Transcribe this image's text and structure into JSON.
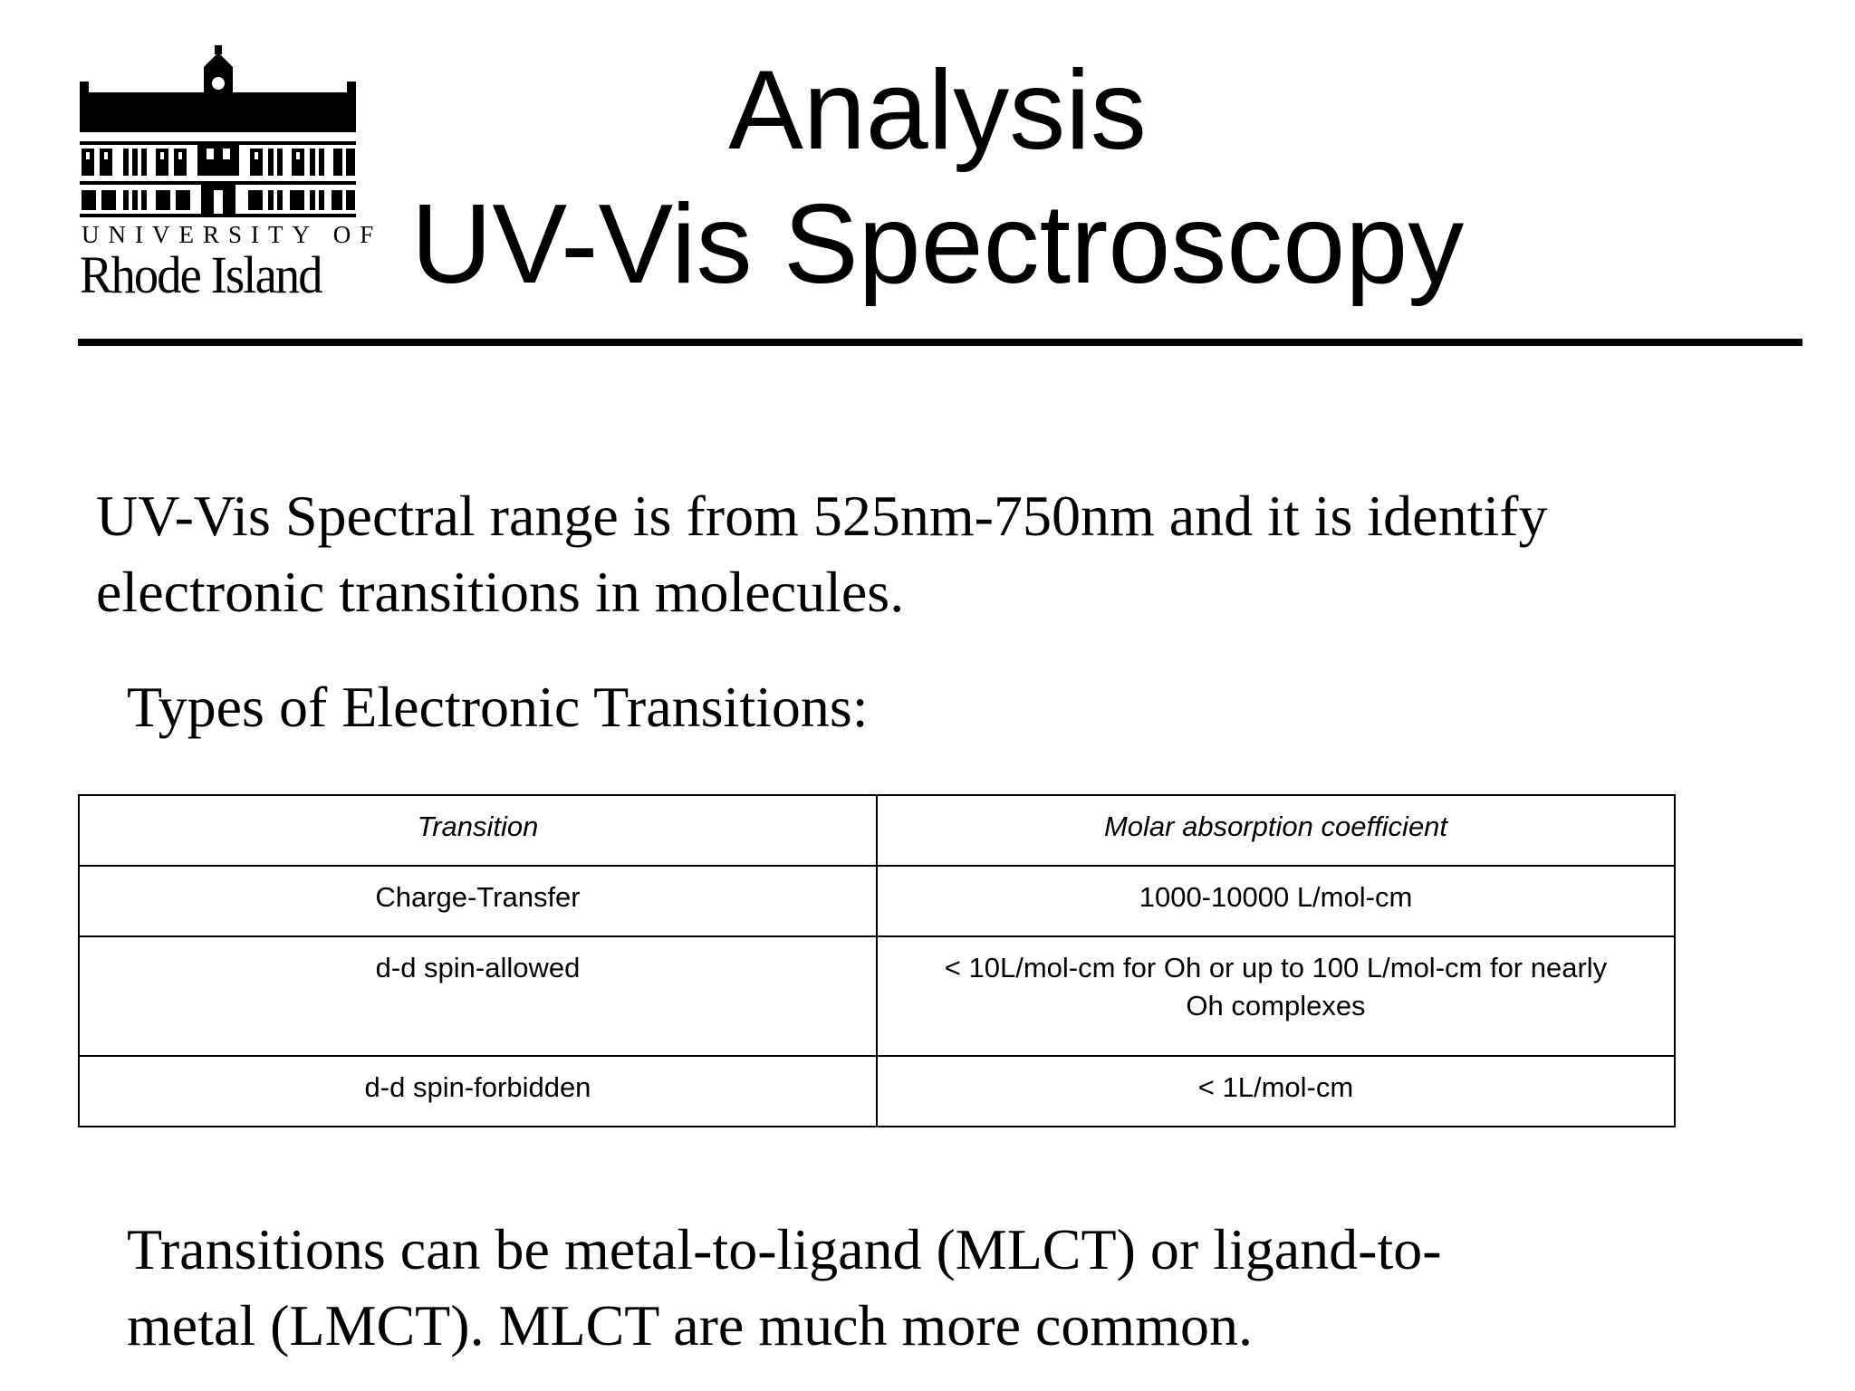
{
  "logo": {
    "line1": "UNIVERSITY OF",
    "line2": "Rhode Island"
  },
  "header": {
    "title_line1": "Analysis",
    "title_line2": "UV-Vis Spectroscopy"
  },
  "intro": {
    "line1": "UV-Vis Spectral range is from 525nm-750nm and it is identify",
    "line2": "electronic transitions in molecules."
  },
  "types_heading": "Types of Electronic Transitions:",
  "table": {
    "headers": [
      "Transition",
      "Molar absorption coefficient"
    ],
    "rows": [
      {
        "transition": "Charge-Transfer",
        "coefficient_lines": [
          "1000-10000 L/mol-cm"
        ]
      },
      {
        "transition": "d-d spin-allowed",
        "coefficient_lines": [
          "< 10L/mol-cm for Oh or up to 100 L/mol-cm for nearly",
          "Oh complexes"
        ]
      },
      {
        "transition": "d-d spin-forbidden",
        "coefficient_lines": [
          "< 1L/mol-cm"
        ]
      }
    ]
  },
  "closing": {
    "line1": "Transitions can be metal-to-ligand (MLCT) or ligand-to-",
    "line2": "metal (LMCT).  MLCT are much more common."
  }
}
